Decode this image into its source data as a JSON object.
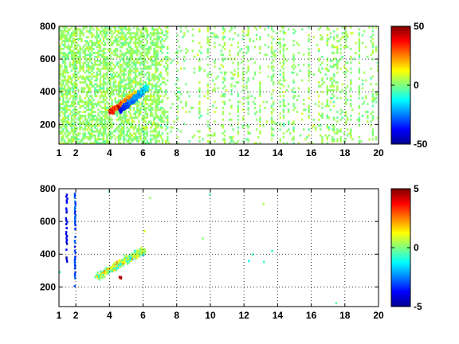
{
  "chart_data": [
    {
      "type": "heatmap",
      "title": "",
      "xlabel": "",
      "ylabel": "",
      "xlim": [
        1,
        20
      ],
      "ylim": [
        80,
        800
      ],
      "x_ticks": [
        1,
        2,
        4,
        6,
        8,
        10,
        12,
        14,
        16,
        18,
        20
      ],
      "y_ticks": [
        200,
        400,
        600,
        800
      ],
      "grid": true,
      "colorbar": {
        "colormap": "jet",
        "range": [
          -50,
          50
        ],
        "ticks": [
          -50,
          0,
          50
        ]
      },
      "density": "dense",
      "features": [
        {
          "kind": "streak",
          "x0": 4.0,
          "y0": 270,
          "x1": 5.6,
          "y1": 390,
          "value": 35
        },
        {
          "kind": "streak",
          "x0": 4.6,
          "y0": 280,
          "x1": 6.2,
          "y1": 420,
          "value": -35
        },
        {
          "kind": "hotspot",
          "x": 4.5,
          "y": 300,
          "value": 45
        }
      ]
    },
    {
      "type": "heatmap",
      "title": "",
      "xlabel": "",
      "ylabel": "",
      "xlim": [
        1,
        20
      ],
      "ylim": [
        80,
        800
      ],
      "x_ticks": [
        1,
        2,
        4,
        6,
        8,
        10,
        12,
        14,
        16,
        18,
        20
      ],
      "y_ticks": [
        200,
        400,
        600,
        800
      ],
      "grid": true,
      "colorbar": {
        "colormap": "jet",
        "range": [
          -5,
          5
        ],
        "ticks": [
          -5,
          0,
          5
        ]
      },
      "density": "sparse",
      "features": [
        {
          "kind": "band",
          "x0": 3.2,
          "y0": 255,
          "x1": 6.0,
          "y1": 420,
          "value": 1.5
        },
        {
          "kind": "line",
          "x": 1.4,
          "y0": 350,
          "y1": 780,
          "value": -4
        },
        {
          "kind": "line",
          "x": 1.9,
          "y0": 200,
          "y1": 780,
          "value": -3
        },
        {
          "kind": "hotspot",
          "x": 4.6,
          "y": 250,
          "value": 4.5
        }
      ]
    }
  ]
}
